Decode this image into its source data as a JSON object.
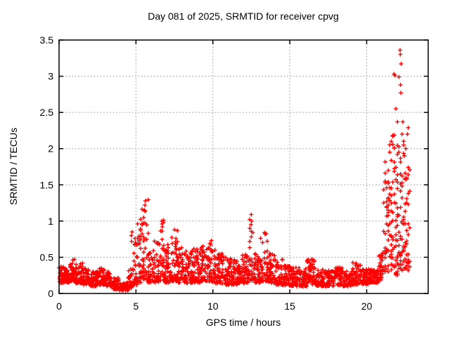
{
  "window": {
    "title": "SRMTID plot"
  },
  "chart_data": {
    "type": "scatter",
    "title": "Day 081 of 2025, SRMTID for receiver cpvg",
    "xlabel": "GPS time / hours",
    "ylabel": "SRMTID / TECUs",
    "xlim": [
      0,
      24
    ],
    "ylim": [
      0,
      3.5
    ],
    "xticks": [
      0,
      5,
      10,
      15,
      20
    ],
    "xtick_labels": [
      "0",
      "5",
      "10",
      "15",
      "20"
    ],
    "yticks": [
      0,
      0.5,
      1,
      1.5,
      2,
      2.5,
      3,
      3.5
    ],
    "ytick_labels": [
      "0",
      "0.5",
      "1",
      "1.5",
      "2",
      "2.5",
      "3",
      "3.5"
    ],
    "grid": true,
    "grid_color": "#a8a8a8",
    "axis_color": "#000000",
    "marker": {
      "shape": "plus",
      "color": "#ff0000",
      "size": 7
    },
    "legend": null,
    "series_name": "SRMTID",
    "band_segments": [
      {
        "x0": 0.0,
        "x1": 0.35,
        "ymin": 0.14,
        "ymax": 0.38,
        "n": 40,
        "skew": 1.6
      },
      {
        "x0": 0.35,
        "x1": 0.7,
        "ymin": 0.15,
        "ymax": 0.35,
        "n": 38,
        "skew": 1.6
      },
      {
        "x0": 0.7,
        "x1": 1.1,
        "ymin": 0.17,
        "ymax": 0.47,
        "n": 45,
        "skew": 1.8
      },
      {
        "x0": 1.1,
        "x1": 1.55,
        "ymin": 0.14,
        "ymax": 0.42,
        "n": 48,
        "skew": 1.8
      },
      {
        "x0": 1.55,
        "x1": 2.0,
        "ymin": 0.12,
        "ymax": 0.35,
        "n": 45,
        "skew": 1.6
      },
      {
        "x0": 2.0,
        "x1": 2.45,
        "ymin": 0.1,
        "ymax": 0.3,
        "n": 45,
        "skew": 1.5
      },
      {
        "x0": 2.45,
        "x1": 3.05,
        "ymin": 0.12,
        "ymax": 0.35,
        "n": 60,
        "skew": 1.7
      },
      {
        "x0": 3.05,
        "x1": 3.45,
        "ymin": 0.1,
        "ymax": 0.3,
        "n": 40,
        "skew": 1.6
      },
      {
        "x0": 3.45,
        "x1": 3.9,
        "ymin": 0.06,
        "ymax": 0.22,
        "n": 42,
        "skew": 1.4
      },
      {
        "x0": 3.9,
        "x1": 4.5,
        "ymin": 0.04,
        "ymax": 0.15,
        "n": 52,
        "skew": 1.2
      },
      {
        "x0": 4.5,
        "x1": 4.85,
        "ymin": 0.08,
        "ymax": 0.35,
        "n": 34,
        "skew": 1.7
      },
      {
        "x0": 4.85,
        "x1": 5.1,
        "ymin": 0.12,
        "ymax": 0.85,
        "n": 30,
        "skew": 2.2
      },
      {
        "x0": 5.1,
        "x1": 5.35,
        "ymin": 0.15,
        "ymax": 1.05,
        "n": 30,
        "skew": 2.4
      },
      {
        "x0": 5.35,
        "x1": 5.8,
        "ymin": 0.18,
        "ymax": 1.3,
        "n": 42,
        "skew": 2.4
      },
      {
        "x0": 5.8,
        "x1": 6.15,
        "ymin": 0.15,
        "ymax": 0.6,
        "n": 34,
        "skew": 1.8
      },
      {
        "x0": 6.15,
        "x1": 6.55,
        "ymin": 0.15,
        "ymax": 0.75,
        "n": 38,
        "skew": 2.0
      },
      {
        "x0": 6.55,
        "x1": 6.85,
        "ymin": 0.18,
        "ymax": 1.02,
        "n": 30,
        "skew": 2.2
      },
      {
        "x0": 6.85,
        "x1": 7.3,
        "ymin": 0.15,
        "ymax": 0.7,
        "n": 44,
        "skew": 1.8
      },
      {
        "x0": 7.3,
        "x1": 7.75,
        "ymin": 0.17,
        "ymax": 0.88,
        "n": 44,
        "skew": 2.0
      },
      {
        "x0": 7.75,
        "x1": 8.2,
        "ymin": 0.15,
        "ymax": 0.65,
        "n": 42,
        "skew": 1.8
      },
      {
        "x0": 8.2,
        "x1": 8.7,
        "ymin": 0.14,
        "ymax": 0.6,
        "n": 48,
        "skew": 1.8
      },
      {
        "x0": 8.7,
        "x1": 9.2,
        "ymin": 0.15,
        "ymax": 0.62,
        "n": 48,
        "skew": 1.8
      },
      {
        "x0": 9.2,
        "x1": 9.7,
        "ymin": 0.17,
        "ymax": 0.68,
        "n": 48,
        "skew": 1.8
      },
      {
        "x0": 9.7,
        "x1": 10.15,
        "ymin": 0.16,
        "ymax": 0.73,
        "n": 44,
        "skew": 1.8
      },
      {
        "x0": 10.15,
        "x1": 10.7,
        "ymin": 0.14,
        "ymax": 0.55,
        "n": 50,
        "skew": 1.7
      },
      {
        "x0": 10.7,
        "x1": 11.2,
        "ymin": 0.12,
        "ymax": 0.5,
        "n": 46,
        "skew": 1.7
      },
      {
        "x0": 11.2,
        "x1": 11.7,
        "ymin": 0.12,
        "ymax": 0.48,
        "n": 46,
        "skew": 1.7
      },
      {
        "x0": 11.7,
        "x1": 12.1,
        "ymin": 0.14,
        "ymax": 0.55,
        "n": 40,
        "skew": 1.7
      },
      {
        "x0": 12.1,
        "x1": 12.35,
        "ymin": 0.15,
        "ymax": 0.6,
        "n": 24,
        "skew": 1.8
      },
      {
        "x0": 12.35,
        "x1": 12.65,
        "ymin": 0.18,
        "ymax": 1.08,
        "n": 30,
        "skew": 2.4
      },
      {
        "x0": 12.65,
        "x1": 13.1,
        "ymin": 0.15,
        "ymax": 0.6,
        "n": 42,
        "skew": 1.7
      },
      {
        "x0": 13.1,
        "x1": 13.6,
        "ymin": 0.17,
        "ymax": 0.84,
        "n": 46,
        "skew": 2.0
      },
      {
        "x0": 13.6,
        "x1": 14.05,
        "ymin": 0.14,
        "ymax": 0.58,
        "n": 42,
        "skew": 1.7
      },
      {
        "x0": 14.05,
        "x1": 14.55,
        "ymin": 0.12,
        "ymax": 0.47,
        "n": 46,
        "skew": 1.6
      },
      {
        "x0": 14.55,
        "x1": 15.05,
        "ymin": 0.11,
        "ymax": 0.4,
        "n": 46,
        "skew": 1.6
      },
      {
        "x0": 15.05,
        "x1": 15.6,
        "ymin": 0.1,
        "ymax": 0.36,
        "n": 48,
        "skew": 1.5
      },
      {
        "x0": 15.6,
        "x1": 16.1,
        "ymin": 0.1,
        "ymax": 0.35,
        "n": 45,
        "skew": 1.5
      },
      {
        "x0": 16.1,
        "x1": 16.65,
        "ymin": 0.12,
        "ymax": 0.48,
        "n": 48,
        "skew": 1.6
      },
      {
        "x0": 16.65,
        "x1": 17.25,
        "ymin": 0.1,
        "ymax": 0.33,
        "n": 50,
        "skew": 1.5
      },
      {
        "x0": 17.25,
        "x1": 17.85,
        "ymin": 0.1,
        "ymax": 0.32,
        "n": 50,
        "skew": 1.5
      },
      {
        "x0": 17.85,
        "x1": 18.45,
        "ymin": 0.11,
        "ymax": 0.37,
        "n": 50,
        "skew": 1.6
      },
      {
        "x0": 18.45,
        "x1": 19.05,
        "ymin": 0.1,
        "ymax": 0.31,
        "n": 50,
        "skew": 1.5
      },
      {
        "x0": 19.05,
        "x1": 19.65,
        "ymin": 0.12,
        "ymax": 0.43,
        "n": 50,
        "skew": 1.6
      },
      {
        "x0": 19.65,
        "x1": 20.15,
        "ymin": 0.13,
        "ymax": 0.34,
        "n": 52,
        "skew": 1.5
      },
      {
        "x0": 20.15,
        "x1": 20.75,
        "ymin": 0.15,
        "ymax": 0.34,
        "n": 70,
        "skew": 1.4
      },
      {
        "x0": 20.75,
        "x1": 21.05,
        "ymin": 0.18,
        "ymax": 0.62,
        "n": 30,
        "skew": 1.7
      },
      {
        "x0": 21.05,
        "x1": 21.45,
        "ymin": 0.3,
        "ymax": 1.9,
        "n": 44,
        "skew": 1.9
      },
      {
        "x0": 21.45,
        "x1": 21.85,
        "ymin": 0.32,
        "ymax": 2.3,
        "n": 46,
        "skew": 1.9
      },
      {
        "x0": 21.85,
        "x1": 22.15,
        "ymin": 0.25,
        "ymax": 2.1,
        "n": 40,
        "skew": 1.8
      },
      {
        "x0": 22.15,
        "x1": 22.5,
        "ymin": 0.3,
        "ymax": 2.45,
        "n": 44,
        "skew": 1.8
      },
      {
        "x0": 22.5,
        "x1": 22.8,
        "ymin": 0.3,
        "ymax": 1.85,
        "n": 34,
        "skew": 1.7
      }
    ],
    "feature_points": [
      [
        5.62,
        1.28
      ],
      [
        5.58,
        1.22
      ],
      [
        5.55,
        1.15
      ],
      [
        5.5,
        1.05
      ],
      [
        4.75,
        0.85
      ],
      [
        4.7,
        0.8
      ],
      [
        4.72,
        0.72
      ],
      [
        6.68,
        1.0
      ],
      [
        6.7,
        0.96
      ],
      [
        6.72,
        0.92
      ],
      [
        1.0,
        0.47
      ],
      [
        7.5,
        0.88
      ],
      [
        9.9,
        0.73
      ],
      [
        12.5,
        1.09
      ],
      [
        12.52,
        1.0
      ],
      [
        12.48,
        0.95
      ],
      [
        13.35,
        0.84
      ],
      [
        21.5,
        1.95
      ],
      [
        21.6,
        2.1
      ],
      [
        21.78,
        3.03
      ],
      [
        21.84,
        3.01
      ],
      [
        21.9,
        2.55
      ],
      [
        22.0,
        2.37
      ],
      [
        22.1,
        2.99
      ],
      [
        22.17,
        3.36
      ],
      [
        22.19,
        3.3
      ],
      [
        22.24,
        3.17
      ],
      [
        22.2,
        2.88
      ],
      [
        22.22,
        2.77
      ],
      [
        22.3,
        2.2
      ],
      [
        22.35,
        2.37
      ],
      [
        22.4,
        2.05
      ],
      [
        22.45,
        1.9
      ],
      [
        22.55,
        2.0
      ],
      [
        22.65,
        2.2
      ],
      [
        22.7,
        2.29
      ]
    ]
  }
}
